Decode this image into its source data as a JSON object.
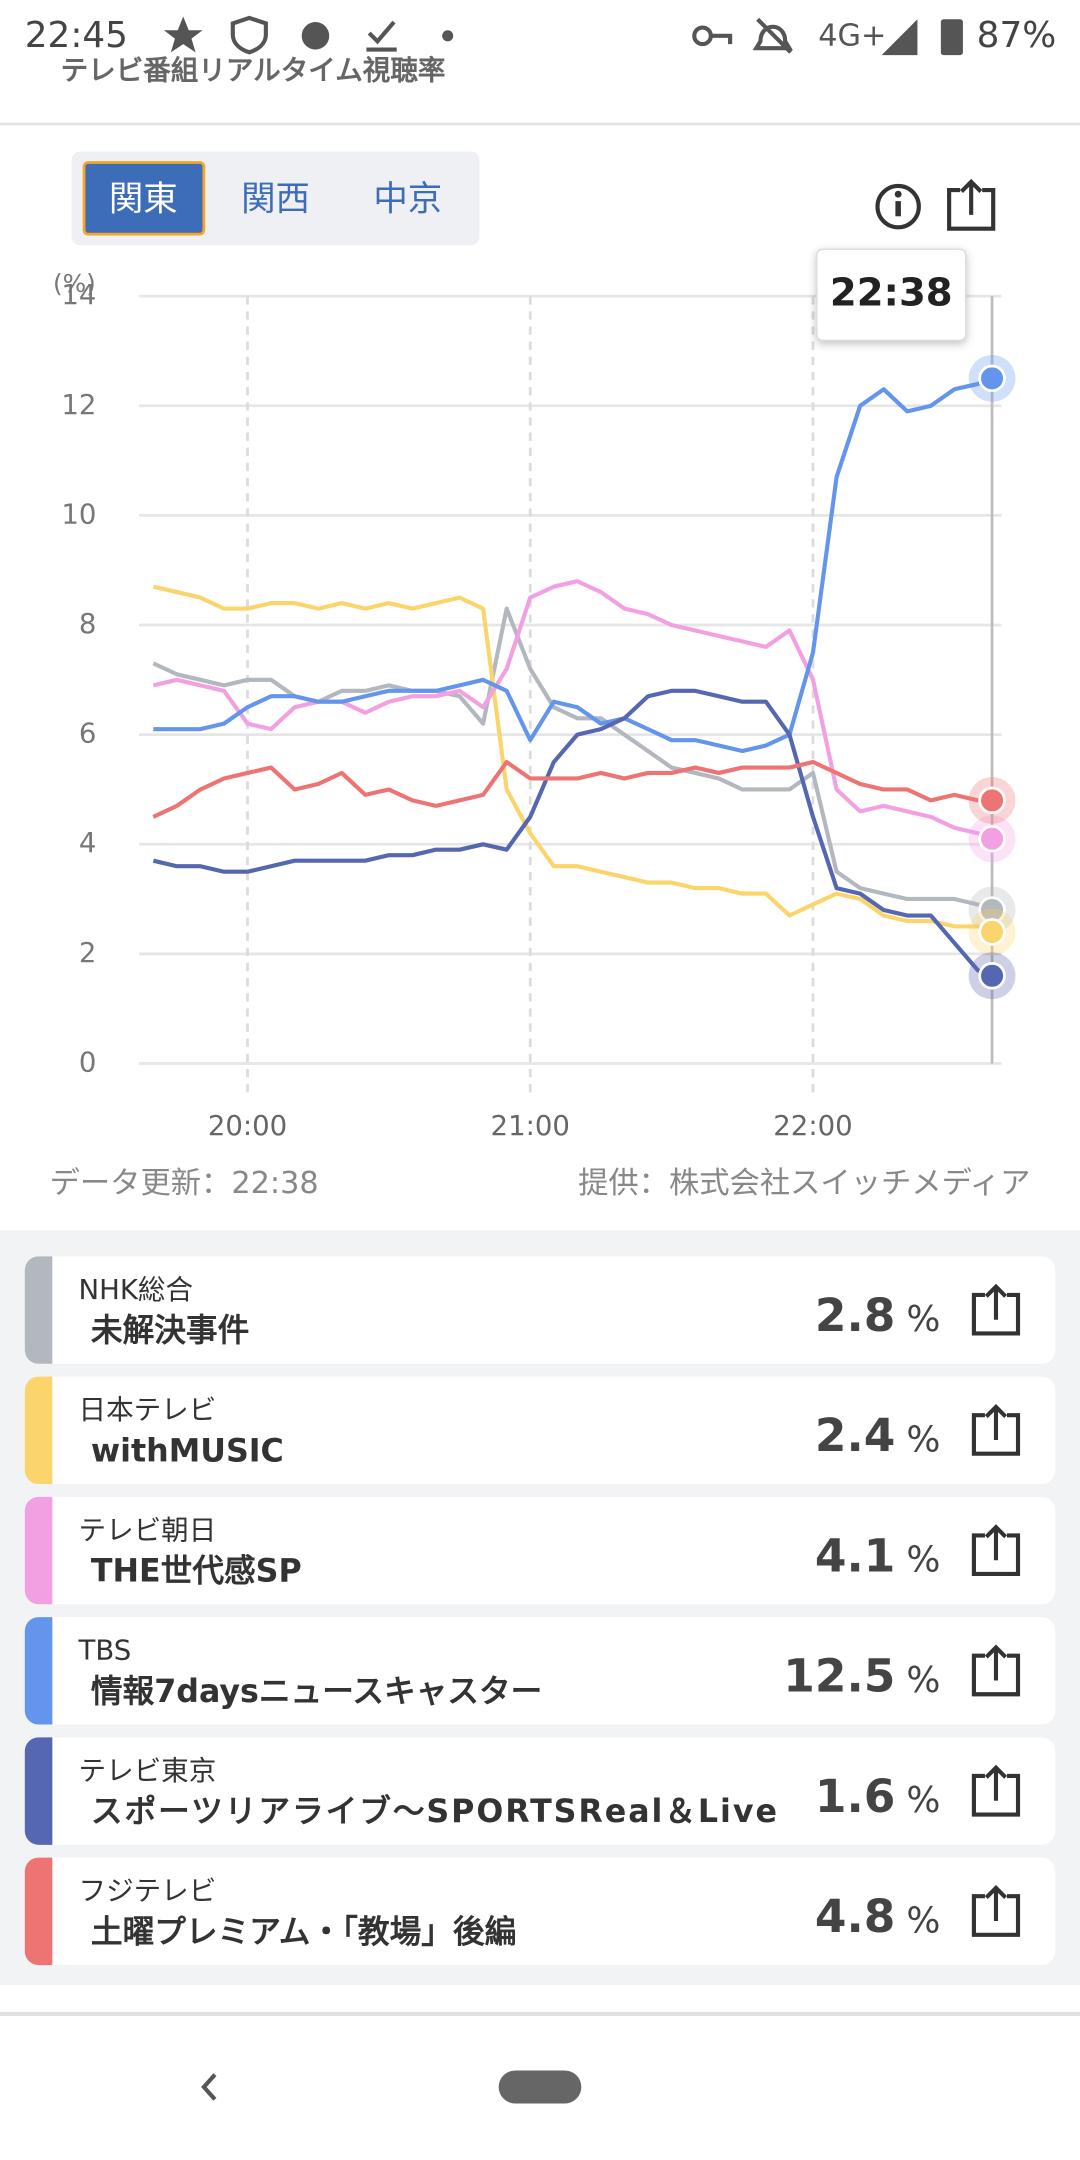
{
  "status_bar": {
    "time": "22:45",
    "network": "4G+",
    "battery": "87%"
  },
  "header": {
    "title": "テレビ番組リアルタイム視聴率"
  },
  "tabs": [
    "関東",
    "関西",
    "中京"
  ],
  "chart_data": {
    "type": "line",
    "y_label": "(%)",
    "tooltip": "22:38",
    "x": [
      "19:40",
      "19:45",
      "19:50",
      "19:55",
      "20:00",
      "20:05",
      "20:10",
      "20:15",
      "20:20",
      "20:25",
      "20:30",
      "20:35",
      "20:40",
      "20:45",
      "20:50",
      "20:55",
      "21:00",
      "21:05",
      "21:10",
      "21:15",
      "21:20",
      "21:25",
      "21:30",
      "21:35",
      "21:40",
      "21:45",
      "21:50",
      "21:55",
      "22:00",
      "22:05",
      "22:10",
      "22:15",
      "22:20",
      "22:25",
      "22:30",
      "22:35",
      "22:38"
    ],
    "xlim": [
      "19:37",
      "22:40"
    ],
    "xticks": [
      "20:00",
      "21:00",
      "22:00"
    ],
    "ylim": [
      0,
      14
    ],
    "yticks": [
      0,
      2,
      4,
      6,
      8,
      10,
      12,
      14
    ],
    "grid": true,
    "series": [
      {
        "color": "#b3b7be",
        "values": [
          7.3,
          7.1,
          7.0,
          6.9,
          7.0,
          7.0,
          6.7,
          6.6,
          6.8,
          6.8,
          6.9,
          6.8,
          6.8,
          6.7,
          6.2,
          8.3,
          7.2,
          6.5,
          6.3,
          6.3,
          6.0,
          5.7,
          5.4,
          5.3,
          5.2,
          5.0,
          5.0,
          5.0,
          5.3,
          3.5,
          3.2,
          3.1,
          3.0,
          3.0,
          3.0,
          2.9,
          2.8
        ]
      },
      {
        "color": "#fbd46b",
        "values": [
          8.7,
          8.6,
          8.5,
          8.3,
          8.3,
          8.4,
          8.4,
          8.3,
          8.4,
          8.3,
          8.4,
          8.3,
          8.4,
          8.5,
          8.3,
          5.0,
          4.2,
          3.6,
          3.6,
          3.5,
          3.4,
          3.3,
          3.3,
          3.2,
          3.2,
          3.1,
          3.1,
          2.7,
          2.9,
          3.1,
          3.0,
          2.7,
          2.6,
          2.6,
          2.5,
          2.5,
          2.4
        ]
      },
      {
        "color": "#f2a0e2",
        "values": [
          6.9,
          7.0,
          6.9,
          6.8,
          6.2,
          6.1,
          6.5,
          6.6,
          6.6,
          6.4,
          6.6,
          6.7,
          6.7,
          6.8,
          6.5,
          7.2,
          8.5,
          8.7,
          8.8,
          8.6,
          8.3,
          8.2,
          8.0,
          7.9,
          7.8,
          7.7,
          7.6,
          7.9,
          7.0,
          5.0,
          4.6,
          4.7,
          4.6,
          4.5,
          4.3,
          4.2,
          4.1
        ]
      },
      {
        "color": "#6495ed",
        "values": [
          6.1,
          6.1,
          6.1,
          6.2,
          6.5,
          6.7,
          6.7,
          6.6,
          6.6,
          6.7,
          6.8,
          6.8,
          6.8,
          6.9,
          7.0,
          6.8,
          5.9,
          6.6,
          6.5,
          6.2,
          6.3,
          6.1,
          5.9,
          5.9,
          5.8,
          5.7,
          5.8,
          6.0,
          7.5,
          10.7,
          12.0,
          12.3,
          11.9,
          12.0,
          12.3,
          12.4,
          12.5
        ]
      },
      {
        "color": "#5567b0",
        "values": [
          3.7,
          3.6,
          3.6,
          3.5,
          3.5,
          3.6,
          3.7,
          3.7,
          3.7,
          3.7,
          3.8,
          3.8,
          3.9,
          3.9,
          4.0,
          3.9,
          4.5,
          5.5,
          6.0,
          6.1,
          6.3,
          6.7,
          6.8,
          6.8,
          6.7,
          6.6,
          6.6,
          6.0,
          4.5,
          3.2,
          3.1,
          2.8,
          2.7,
          2.7,
          2.2,
          1.7,
          1.6
        ]
      },
      {
        "color": "#ee7474",
        "values": [
          4.5,
          4.7,
          5.0,
          5.2,
          5.3,
          5.4,
          5.0,
          5.1,
          5.3,
          4.9,
          5.0,
          4.8,
          4.7,
          4.8,
          4.9,
          5.5,
          5.2,
          5.2,
          5.2,
          5.3,
          5.2,
          5.3,
          5.3,
          5.4,
          5.3,
          5.4,
          5.4,
          5.4,
          5.5,
          5.3,
          5.1,
          5.0,
          5.0,
          4.8,
          4.9,
          4.8,
          4.8
        ]
      }
    ]
  },
  "footer": {
    "updated": "データ更新：22:38",
    "source": "提供：株式会社スイッチメディア"
  },
  "list": [
    {
      "channel": "NHK総合",
      "program": "未解決事件",
      "value": "2.8",
      "unit": "%"
    },
    {
      "channel": "日本テレビ",
      "program": "withMUSIC",
      "value": "2.4",
      "unit": "%"
    },
    {
      "channel": "テレビ朝日",
      "program": "THE世代感SP",
      "value": "4.1",
      "unit": "%"
    },
    {
      "channel": "TBS",
      "program": "情報7daysニュースキャスター",
      "value": "12.5",
      "unit": "%"
    },
    {
      "channel": "テレビ東京",
      "program": "スポーツリアライブ～SPORTSReal＆Live",
      "value": "1.6",
      "unit": "%"
    },
    {
      "channel": "フジテレビ",
      "program": "土曜プレミアム・「教場」後編",
      "value": "4.8",
      "unit": "%"
    }
  ]
}
